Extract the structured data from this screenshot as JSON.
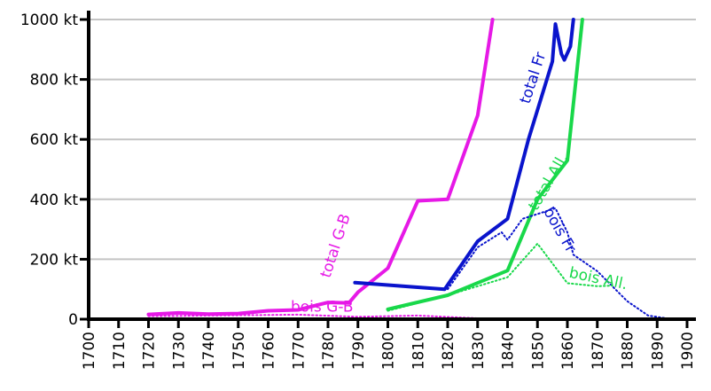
{
  "chart_data": {
    "type": "line",
    "title": "",
    "xlabel": "",
    "ylabel": "",
    "xlim": [
      1700,
      1900
    ],
    "ylim": [
      0,
      1000
    ],
    "grid": "horizontal",
    "x_ticks": [
      "1700",
      "1710",
      "1720",
      "1730",
      "1740",
      "1750",
      "1760",
      "1770",
      "1780",
      "1790",
      "1800",
      "1810",
      "1820",
      "1830",
      "1840",
      "1850",
      "1860",
      "1870",
      "1880",
      "1890",
      "1900"
    ],
    "y_ticks": [
      {
        "value": 0,
        "label": "0"
      },
      {
        "value": 200,
        "label": "200 kt"
      },
      {
        "value": 400,
        "label": "400 kt"
      },
      {
        "value": 600,
        "label": "600 kt"
      },
      {
        "value": 800,
        "label": "800 kt"
      },
      {
        "value": 1000,
        "label": "1000 kt"
      }
    ],
    "series": [
      {
        "name": "total G-B",
        "color": "#e619e6",
        "style": "solid",
        "label_at": {
          "x": 1784,
          "y": 240,
          "angle": -72
        },
        "points": [
          [
            1720,
            16
          ],
          [
            1730,
            21
          ],
          [
            1740,
            17
          ],
          [
            1750,
            19
          ],
          [
            1760,
            28
          ],
          [
            1770,
            31
          ],
          [
            1780,
            56
          ],
          [
            1787,
            54
          ],
          [
            1790,
            90
          ],
          [
            1800,
            170
          ],
          [
            1810,
            395
          ],
          [
            1820,
            400
          ],
          [
            1830,
            680
          ],
          [
            1835,
            1000
          ]
        ]
      },
      {
        "name": "total Fr",
        "color": "#0a14cc",
        "style": "solid",
        "label_at": {
          "x": 1850,
          "y": 800,
          "angle": -72
        },
        "points": [
          [
            1789,
            122
          ],
          [
            1819,
            100
          ],
          [
            1830,
            260
          ],
          [
            1840,
            335
          ],
          [
            1847,
            600
          ],
          [
            1855,
            860
          ],
          [
            1856,
            985
          ],
          [
            1858,
            885
          ],
          [
            1859,
            865
          ],
          [
            1861,
            910
          ],
          [
            1862,
            1000
          ]
        ]
      },
      {
        "name": "total All.",
        "color": "#19d84a",
        "style": "solid",
        "label_at": {
          "x": 1855,
          "y": 450,
          "angle": -60
        },
        "points": [
          [
            1800,
            33
          ],
          [
            1820,
            80
          ],
          [
            1840,
            162
          ],
          [
            1850,
            400
          ],
          [
            1860,
            530
          ],
          [
            1865,
            1000
          ]
        ]
      },
      {
        "name": "bois G-B",
        "color": "#e619e6",
        "style": "dotted",
        "label_at": {
          "x": 1778,
          "y": 25,
          "angle": 0
        },
        "points": [
          [
            1720,
            10
          ],
          [
            1770,
            15
          ],
          [
            1790,
            8
          ],
          [
            1810,
            12
          ],
          [
            1830,
            3
          ],
          [
            1835,
            0
          ]
        ]
      },
      {
        "name": "bois Fr",
        "color": "#0a14cc",
        "style": "dotted",
        "label_at": {
          "x": 1856,
          "y": 290,
          "angle": 60
        },
        "points": [
          [
            1820,
            100
          ],
          [
            1830,
            240
          ],
          [
            1838,
            290
          ],
          [
            1840,
            265
          ],
          [
            1845,
            335
          ],
          [
            1856,
            370
          ],
          [
            1860,
            290
          ],
          [
            1862,
            215
          ],
          [
            1870,
            160
          ],
          [
            1880,
            60
          ],
          [
            1887,
            12
          ],
          [
            1895,
            0
          ]
        ]
      },
      {
        "name": "bois All.",
        "color": "#19d84a",
        "style": "dotted",
        "label_at": {
          "x": 1870,
          "y": 120,
          "angle": 12
        },
        "points": [
          [
            1800,
            28
          ],
          [
            1820,
            80
          ],
          [
            1840,
            140
          ],
          [
            1850,
            252
          ],
          [
            1860,
            120
          ],
          [
            1870,
            110
          ],
          [
            1875,
            112
          ]
        ]
      }
    ]
  }
}
